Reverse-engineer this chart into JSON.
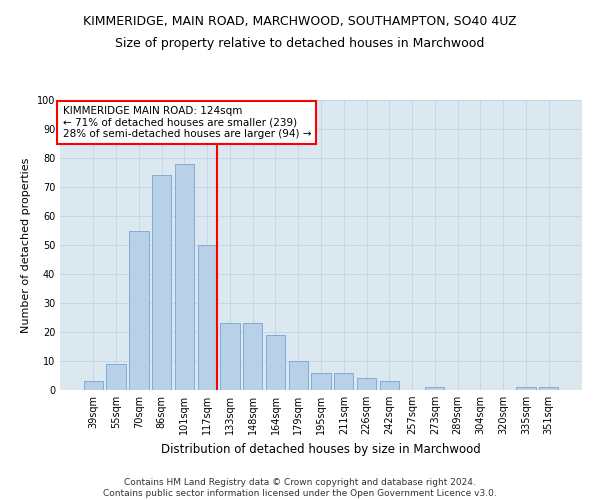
{
  "title": "KIMMERIDGE, MAIN ROAD, MARCHWOOD, SOUTHAMPTON, SO40 4UZ",
  "subtitle": "Size of property relative to detached houses in Marchwood",
  "xlabel": "Distribution of detached houses by size in Marchwood",
  "ylabel": "Number of detached properties",
  "categories": [
    "39sqm",
    "55sqm",
    "70sqm",
    "86sqm",
    "101sqm",
    "117sqm",
    "133sqm",
    "148sqm",
    "164sqm",
    "179sqm",
    "195sqm",
    "211sqm",
    "226sqm",
    "242sqm",
    "257sqm",
    "273sqm",
    "289sqm",
    "304sqm",
    "320sqm",
    "335sqm",
    "351sqm"
  ],
  "values": [
    3,
    9,
    55,
    74,
    78,
    50,
    23,
    23,
    19,
    10,
    6,
    6,
    4,
    3,
    0,
    1,
    0,
    0,
    0,
    1,
    1
  ],
  "bar_color": "#b8d0e8",
  "bar_edge_color": "#6699cc",
  "vline_x_index": 5,
  "vline_color": "red",
  "annotation_text": "KIMMERIDGE MAIN ROAD: 124sqm\n← 71% of detached houses are smaller (239)\n28% of semi-detached houses are larger (94) →",
  "annotation_box_color": "white",
  "annotation_box_edge_color": "red",
  "ylim": [
    0,
    100
  ],
  "yticks": [
    0,
    10,
    20,
    30,
    40,
    50,
    60,
    70,
    80,
    90,
    100
  ],
  "grid_color": "#c8d4e8",
  "bg_color": "#dce8f0",
  "footer_line1": "Contains HM Land Registry data © Crown copyright and database right 2024.",
  "footer_line2": "Contains public sector information licensed under the Open Government Licence v3.0.",
  "title_fontsize": 9,
  "subtitle_fontsize": 9,
  "xlabel_fontsize": 8.5,
  "ylabel_fontsize": 8,
  "tick_fontsize": 7,
  "footer_fontsize": 6.5,
  "annotation_fontsize": 7.5
}
